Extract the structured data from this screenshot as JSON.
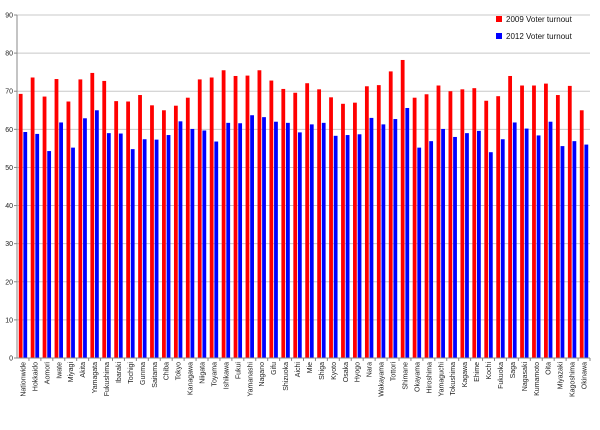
{
  "chart_data": {
    "type": "bar",
    "categories": [
      "Nationwide",
      "Hokkaido",
      "Aomori",
      "Iwate",
      "Miyagi",
      "Akita",
      "Yamagata",
      "Fukushima",
      "Ibaraki",
      "Tochigi",
      "Gunma",
      "Saitama",
      "Chiba",
      "Tokyo",
      "Kanagawa",
      "Niigata",
      "Toyama",
      "Ishikawa",
      "Fukui",
      "Yamanashi",
      "Nagano",
      "Gifu",
      "Shizuoka",
      "Aichi",
      "Mie",
      "Shiga",
      "Kyoto",
      "Osaka",
      "Hyogo",
      "Nara",
      "Wakayama",
      "Tottori",
      "Shimane",
      "Okayama",
      "Hiroshima",
      "Yamaguchi",
      "Tokushima",
      "Kagawa",
      "Ehime",
      "Kochi",
      "Fukuoka",
      "Saga",
      "Nagasaki",
      "Kumamoto",
      "Oita",
      "Miyazaki",
      "Kagoshima",
      "Okinawa"
    ],
    "series": [
      {
        "name": "2009 Voter turnout",
        "color": "#ff0000",
        "values": [
          69.3,
          73.6,
          68.6,
          73.2,
          67.3,
          73.1,
          74.8,
          72.7,
          67.4,
          67.3,
          69.0,
          66.3,
          65.0,
          66.2,
          68.3,
          73.1,
          73.6,
          75.5,
          74.0,
          74.1,
          75.5,
          72.8,
          70.6,
          69.6,
          72.1,
          70.5,
          68.4,
          66.7,
          67.0,
          71.3,
          71.6,
          75.2,
          78.2,
          68.3,
          69.2,
          71.5,
          70.0,
          70.5,
          70.8,
          67.5,
          68.7,
          74.0,
          71.5,
          71.5,
          72.0,
          69.0,
          71.4,
          65.0
        ]
      },
      {
        "name": "2012 Voter turnout",
        "color": "#0000ff",
        "values": [
          59.3,
          58.8,
          54.3,
          61.8,
          55.2,
          62.9,
          65.0,
          59.0,
          58.9,
          54.8,
          57.4,
          57.3,
          58.5,
          62.1,
          60.1,
          59.7,
          56.8,
          61.7,
          61.6,
          63.7,
          63.2,
          62.0,
          61.7,
          59.2,
          61.3,
          61.7,
          58.3,
          58.5,
          58.7,
          63.0,
          61.3,
          62.7,
          65.6,
          55.2,
          56.9,
          60.1,
          58.0,
          59.0,
          59.6,
          54.0,
          57.4,
          61.8,
          60.2,
          58.4,
          62.0,
          55.6,
          56.9,
          56.0
        ]
      }
    ],
    "ylim": [
      0,
      90
    ],
    "yticks": [
      "0",
      "10",
      "20",
      "30",
      "40",
      "50",
      "60",
      "70",
      "80",
      "90"
    ],
    "grid": true,
    "legend_position": "top-right",
    "title": "",
    "xlabel": "",
    "ylabel": ""
  }
}
